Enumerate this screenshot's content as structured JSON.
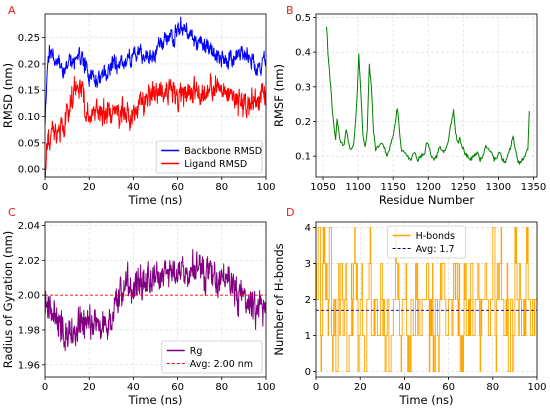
{
  "chart_data": [
    {
      "panel": "A",
      "type": "line",
      "xlabel": "Time (ns)",
      "ylabel": "RMSD (nm)",
      "xlim": [
        0,
        100
      ],
      "ylim": [
        -0.015,
        0.295
      ],
      "xticks": [
        0,
        20,
        40,
        60,
        80,
        100
      ],
      "yticks": [
        0.0,
        0.05,
        0.1,
        0.15,
        0.2,
        0.25
      ],
      "grid": true,
      "legend": "bottom-right",
      "series": [
        {
          "name": "Backbone RMSD",
          "color": "#0000ff",
          "noise": 0.012,
          "x": [
            0,
            1,
            2,
            4,
            6,
            8,
            10,
            13,
            16,
            20,
            25,
            30,
            35,
            40,
            43,
            46,
            50,
            53,
            56,
            58,
            60,
            62,
            64,
            66,
            68,
            70,
            74,
            78,
            82,
            86,
            90,
            94,
            97,
            100
          ],
          "y": [
            0.1,
            0.18,
            0.22,
            0.22,
            0.2,
            0.18,
            0.2,
            0.21,
            0.21,
            0.18,
            0.17,
            0.2,
            0.2,
            0.22,
            0.22,
            0.21,
            0.22,
            0.24,
            0.25,
            0.25,
            0.265,
            0.27,
            0.26,
            0.255,
            0.245,
            0.235,
            0.23,
            0.21,
            0.205,
            0.21,
            0.225,
            0.2,
            0.19,
            0.21
          ]
        },
        {
          "name": "Ligand RMSD",
          "color": "#ff0000",
          "noise": 0.018,
          "x": [
            0,
            1,
            2,
            5,
            8,
            10,
            13,
            16,
            20,
            25,
            30,
            35,
            40,
            45,
            50,
            55,
            58,
            60,
            65,
            70,
            75,
            80,
            85,
            90,
            95,
            100
          ],
          "y": [
            0.0,
            0.04,
            0.06,
            0.07,
            0.09,
            0.1,
            0.15,
            0.16,
            0.1,
            0.11,
            0.1,
            0.11,
            0.1,
            0.13,
            0.14,
            0.16,
            0.15,
            0.12,
            0.15,
            0.14,
            0.16,
            0.15,
            0.14,
            0.12,
            0.13,
            0.14
          ]
        }
      ]
    },
    {
      "panel": "B",
      "type": "line",
      "xlabel": "Residue Number",
      "ylabel": "RMSF (nm)",
      "xlim": [
        1040,
        1355
      ],
      "ylim": [
        0.04,
        0.51
      ],
      "xticks": [
        1050,
        1100,
        1150,
        1200,
        1250,
        1300,
        1350
      ],
      "yticks": [
        0.1,
        0.2,
        0.3,
        0.4,
        0.5
      ],
      "grid": true,
      "legend": "none",
      "series": [
        {
          "name": "",
          "color": "#008000",
          "x": [
            1055,
            1057,
            1060,
            1064,
            1068,
            1070,
            1072,
            1075,
            1080,
            1083,
            1086,
            1090,
            1094,
            1098,
            1101,
            1104,
            1107,
            1110,
            1113,
            1116,
            1119,
            1122,
            1125,
            1130,
            1134,
            1138,
            1142,
            1146,
            1150,
            1153,
            1156,
            1159,
            1162,
            1166,
            1170,
            1175,
            1180,
            1185,
            1190,
            1195,
            1198,
            1201,
            1204,
            1208,
            1212,
            1216,
            1220,
            1224,
            1228,
            1232,
            1236,
            1239,
            1242,
            1245,
            1248,
            1252,
            1256,
            1260,
            1265,
            1270,
            1274,
            1278,
            1282,
            1286,
            1290,
            1294,
            1298,
            1302,
            1306,
            1310,
            1314,
            1318,
            1321,
            1324,
            1327,
            1330,
            1334,
            1338,
            1342,
            1344
          ],
          "y": [
            0.48,
            0.4,
            0.32,
            0.22,
            0.15,
            0.21,
            0.18,
            0.14,
            0.13,
            0.18,
            0.14,
            0.12,
            0.14,
            0.25,
            0.39,
            0.28,
            0.16,
            0.13,
            0.17,
            0.36,
            0.3,
            0.17,
            0.12,
            0.13,
            0.14,
            0.12,
            0.1,
            0.13,
            0.16,
            0.2,
            0.24,
            0.17,
            0.12,
            0.11,
            0.1,
            0.09,
            0.11,
            0.09,
            0.1,
            0.11,
            0.14,
            0.13,
            0.1,
            0.09,
            0.1,
            0.13,
            0.12,
            0.11,
            0.14,
            0.19,
            0.23,
            0.17,
            0.14,
            0.15,
            0.13,
            0.11,
            0.1,
            0.09,
            0.1,
            0.11,
            0.09,
            0.1,
            0.13,
            0.12,
            0.11,
            0.09,
            0.1,
            0.11,
            0.09,
            0.08,
            0.11,
            0.13,
            0.16,
            0.12,
            0.09,
            0.08,
            0.09,
            0.1,
            0.12,
            0.23
          ]
        }
      ]
    },
    {
      "panel": "C",
      "type": "line",
      "xlabel": "Time (ns)",
      "ylabel": "Radius of Gyration (nm)",
      "xlim": [
        0,
        100
      ],
      "ylim": [
        1.953,
        2.042
      ],
      "xticks": [
        0,
        20,
        40,
        60,
        80,
        100
      ],
      "yticks": [
        1.96,
        1.98,
        2.0,
        2.02,
        2.04
      ],
      "grid": true,
      "legend": "bottom-right",
      "series": [
        {
          "name": "Rg",
          "color": "#800080",
          "noise": 0.007,
          "x": [
            0,
            2,
            5,
            8,
            10,
            13,
            16,
            20,
            25,
            30,
            33,
            36,
            40,
            45,
            50,
            55,
            60,
            65,
            68,
            72,
            76,
            80,
            85,
            88,
            92,
            96,
            100
          ],
          "y": [
            2.0,
            1.995,
            1.985,
            1.982,
            1.978,
            1.98,
            1.985,
            1.984,
            1.984,
            1.983,
            1.998,
            2.008,
            2.005,
            2.01,
            2.012,
            2.013,
            2.012,
            2.015,
            2.018,
            2.01,
            2.012,
            2.008,
            2.006,
            2.0,
            1.995,
            1.992,
            1.99
          ]
        }
      ],
      "reference_line": {
        "name": "Avg: 2.00 nm",
        "value": 2.0,
        "color": "#ff0000"
      }
    },
    {
      "panel": "D",
      "type": "line",
      "xlabel": "Time (ns)",
      "ylabel": "Number of H-bonds",
      "xlim": [
        0,
        100
      ],
      "ylim": [
        -0.15,
        4.15
      ],
      "xticks": [
        0,
        20,
        40,
        60,
        80,
        100
      ],
      "yticks": [
        0,
        1,
        2,
        3,
        4
      ],
      "grid": true,
      "legend": "top-center",
      "series": [
        {
          "name": "H-bonds",
          "color": "#ffa500",
          "step": true,
          "levels_summary": "integer counts 0-4 sampled every 0.25 ns, mostly 1-2 with frequent spikes to 3-4 and drops to 0",
          "values": [
            2,
            4,
            1,
            4,
            3,
            2,
            4,
            1,
            2,
            0,
            2,
            3,
            1,
            2,
            0,
            1,
            2,
            3,
            2,
            1,
            2,
            1,
            0,
            2,
            3,
            1,
            2,
            2,
            1,
            3,
            2,
            1,
            2,
            0,
            1,
            2,
            3,
            2,
            1,
            2,
            2,
            1,
            0,
            2,
            1,
            3,
            2,
            1,
            2,
            2,
            3,
            1,
            2,
            0,
            2,
            1,
            2,
            3,
            2,
            1,
            2,
            1,
            3,
            2,
            2,
            1,
            0,
            2,
            1,
            2,
            3,
            1,
            2,
            2,
            1,
            2,
            3,
            2,
            1,
            2,
            4,
            1,
            2,
            3,
            2,
            1,
            2,
            0,
            2,
            1,
            3,
            2,
            2,
            1,
            2,
            3,
            2,
            1,
            2,
            2
          ]
        }
      ],
      "reference_line": {
        "name": "Avg: 1.7",
        "value": 1.7,
        "color": "#00008b"
      }
    }
  ]
}
